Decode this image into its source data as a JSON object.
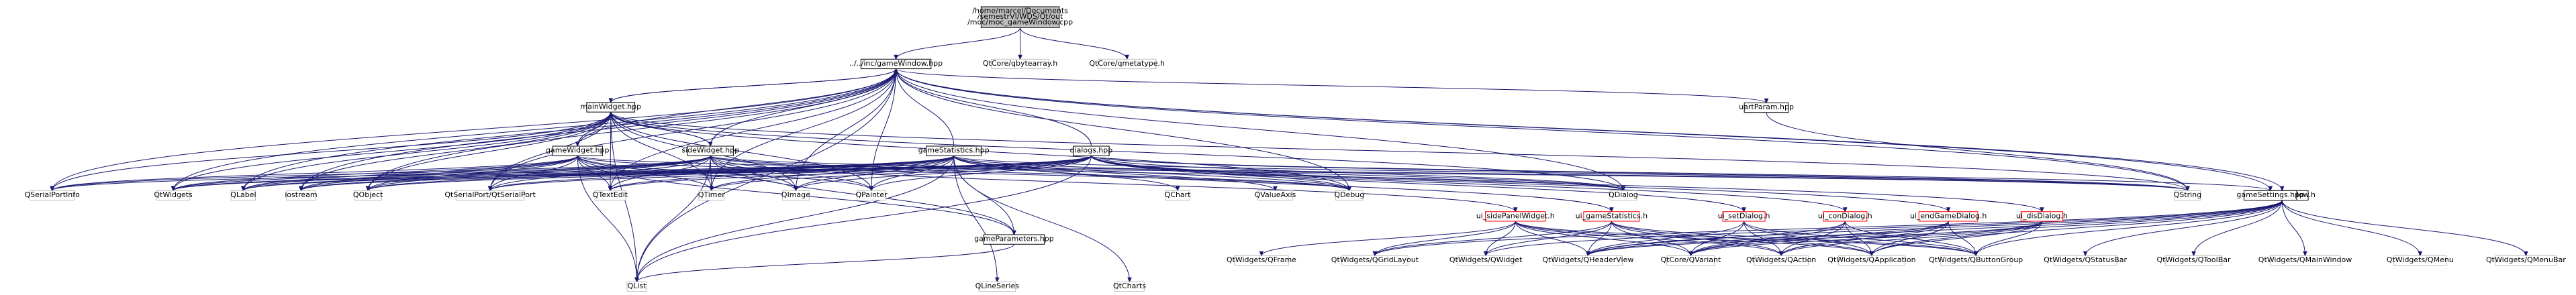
{
  "diagram": {
    "type": "include-dependency-graph",
    "colors": {
      "edge": "#191970",
      "root_fill": "#bfbfbf",
      "node_stroke_default": "#000000",
      "node_stroke_missing": "#bfbfbf",
      "node_stroke_truncated": "#ff0000",
      "node_fill": "#ffffff"
    },
    "nodes": [
      {
        "id": "root",
        "lines": [
          "/home/marcel/Documents",
          "/semestrVI/WDS/Qt/out",
          "/moc/moc_gameWindow.cpp"
        ],
        "kind": "root"
      },
      {
        "id": "gameWindow_hpp",
        "lines": [
          "../../inc/gameWindow.hpp"
        ],
        "kind": "file"
      },
      {
        "id": "qbytearray",
        "lines": [
          "QtCore/qbytearray.h"
        ],
        "kind": "missing"
      },
      {
        "id": "qmetatype",
        "lines": [
          "QtCore/qmetatype.h"
        ],
        "kind": "missing"
      },
      {
        "id": "mainWidget",
        "lines": [
          "mainWidget.hpp"
        ],
        "kind": "file"
      },
      {
        "id": "uartParam",
        "lines": [
          "uartParam.hpp"
        ],
        "kind": "file"
      },
      {
        "id": "gameWidget",
        "lines": [
          "gameWidget.hpp"
        ],
        "kind": "file"
      },
      {
        "id": "sideWidget",
        "lines": [
          "sideWidget.hpp"
        ],
        "kind": "file"
      },
      {
        "id": "gameStatistics_hpp",
        "lines": [
          "gameStatistics.hpp"
        ],
        "kind": "file"
      },
      {
        "id": "dialogs",
        "lines": [
          "dialogs.hpp"
        ],
        "kind": "file"
      },
      {
        "id": "ui_gameWindow",
        "lines": [
          "ui_gameWindow.h"
        ],
        "kind": "file"
      },
      {
        "id": "QSerialPortInfo",
        "lines": [
          "QSerialPortInfo"
        ],
        "kind": "missing"
      },
      {
        "id": "QtWidgets",
        "lines": [
          "QtWidgets"
        ],
        "kind": "missing"
      },
      {
        "id": "QLabel",
        "lines": [
          "QLabel"
        ],
        "kind": "missing"
      },
      {
        "id": "iostream",
        "lines": [
          "iostream"
        ],
        "kind": "missing"
      },
      {
        "id": "QObject",
        "lines": [
          "QObject"
        ],
        "kind": "missing"
      },
      {
        "id": "QtSerialPort",
        "lines": [
          "QtSerialPort/QtSerialPort"
        ],
        "kind": "missing"
      },
      {
        "id": "QTextEdit",
        "lines": [
          "QTextEdit"
        ],
        "kind": "missing"
      },
      {
        "id": "QTimer",
        "lines": [
          "QTimer"
        ],
        "kind": "missing"
      },
      {
        "id": "QImage",
        "lines": [
          "QImage"
        ],
        "kind": "missing"
      },
      {
        "id": "QPainter",
        "lines": [
          "QPainter"
        ],
        "kind": "missing"
      },
      {
        "id": "gameParameters",
        "lines": [
          "gameParameters.hpp"
        ],
        "kind": "file"
      },
      {
        "id": "QChart",
        "lines": [
          "QChart"
        ],
        "kind": "missing"
      },
      {
        "id": "QValueAxis",
        "lines": [
          "QValueAxis"
        ],
        "kind": "missing"
      },
      {
        "id": "QDebug",
        "lines": [
          "QDebug"
        ],
        "kind": "missing"
      },
      {
        "id": "QDialog",
        "lines": [
          "QDialog"
        ],
        "kind": "missing"
      },
      {
        "id": "ui_sidePanelWidget",
        "lines": [
          "ui_sidePanelWidget.h"
        ],
        "kind": "truncated"
      },
      {
        "id": "ui_gameStatistics",
        "lines": [
          "ui_gameStatistics.h"
        ],
        "kind": "truncated"
      },
      {
        "id": "ui_setDialog",
        "lines": [
          "ui_setDialog.h"
        ],
        "kind": "truncated"
      },
      {
        "id": "ui_conDialog",
        "lines": [
          "ui_conDialog.h"
        ],
        "kind": "truncated"
      },
      {
        "id": "ui_endGameDialog",
        "lines": [
          "ui_endGameDialog.h"
        ],
        "kind": "truncated"
      },
      {
        "id": "ui_disDialog",
        "lines": [
          "ui_disDialog.h"
        ],
        "kind": "truncated"
      },
      {
        "id": "QString",
        "lines": [
          "QString"
        ],
        "kind": "missing"
      },
      {
        "id": "gameSettings",
        "lines": [
          "gameSettings.hpp"
        ],
        "kind": "file"
      },
      {
        "id": "QList",
        "lines": [
          "QList"
        ],
        "kind": "missing"
      },
      {
        "id": "QLineSeries",
        "lines": [
          "QLineSeries"
        ],
        "kind": "missing"
      },
      {
        "id": "QtCharts",
        "lines": [
          "QtCharts"
        ],
        "kind": "missing"
      },
      {
        "id": "QFrame",
        "lines": [
          "QtWidgets/QFrame"
        ],
        "kind": "missing"
      },
      {
        "id": "QGridLayout",
        "lines": [
          "QtWidgets/QGridLayout"
        ],
        "kind": "missing"
      },
      {
        "id": "QWidget",
        "lines": [
          "QtWidgets/QWidget"
        ],
        "kind": "missing"
      },
      {
        "id": "QHeaderView",
        "lines": [
          "QtWidgets/QHeaderView"
        ],
        "kind": "missing"
      },
      {
        "id": "QVariant",
        "lines": [
          "QtCore/QVariant"
        ],
        "kind": "missing"
      },
      {
        "id": "QAction",
        "lines": [
          "QtWidgets/QAction"
        ],
        "kind": "missing"
      },
      {
        "id": "QApplication",
        "lines": [
          "QtWidgets/QApplication"
        ],
        "kind": "missing"
      },
      {
        "id": "QButtonGroup",
        "lines": [
          "QtWidgets/QButtonGroup"
        ],
        "kind": "missing"
      },
      {
        "id": "QStatusBar",
        "lines": [
          "QtWidgets/QStatusBar"
        ],
        "kind": "missing"
      },
      {
        "id": "QToolBar",
        "lines": [
          "QtWidgets/QToolBar"
        ],
        "kind": "missing"
      },
      {
        "id": "QMainWindow",
        "lines": [
          "QtWidgets/QMainWindow"
        ],
        "kind": "missing"
      },
      {
        "id": "QMenu",
        "lines": [
          "QtWidgets/QMenu"
        ],
        "kind": "missing"
      },
      {
        "id": "QMenuBar",
        "lines": [
          "QtWidgets/QMenuBar"
        ],
        "kind": "missing"
      }
    ],
    "edges": [
      [
        "root",
        "gameWindow_hpp"
      ],
      [
        "root",
        "qbytearray"
      ],
      [
        "root",
        "qmetatype"
      ],
      [
        "gameWindow_hpp",
        "mainWidget"
      ],
      [
        "gameWindow_hpp",
        "uartParam"
      ],
      [
        "gameWindow_hpp",
        "gameSettings"
      ],
      [
        "gameWindow_hpp",
        "ui_gameWindow"
      ],
      [
        "gameWindow_hpp",
        "QString"
      ],
      [
        "gameWindow_hpp",
        "QDialog"
      ],
      [
        "gameWindow_hpp",
        "QDebug"
      ],
      [
        "gameWindow_hpp",
        "QPainter"
      ],
      [
        "gameWindow_hpp",
        "QImage"
      ],
      [
        "gameWindow_hpp",
        "QTimer"
      ],
      [
        "gameWindow_hpp",
        "QTextEdit"
      ],
      [
        "gameWindow_hpp",
        "QtSerialPort"
      ],
      [
        "gameWindow_hpp",
        "QObject"
      ],
      [
        "gameWindow_hpp",
        "iostream"
      ],
      [
        "gameWindow_hpp",
        "QLabel"
      ],
      [
        "gameWindow_hpp",
        "QtWidgets"
      ],
      [
        "gameWindow_hpp",
        "QSerialPortInfo"
      ],
      [
        "gameWindow_hpp",
        "QList"
      ],
      [
        "mainWidget",
        "gameWidget"
      ],
      [
        "mainWidget",
        "sideWidget"
      ],
      [
        "mainWidget",
        "gameWindow_hpp"
      ],
      [
        "mainWidget",
        "QSerialPortInfo"
      ],
      [
        "mainWidget",
        "QtWidgets"
      ],
      [
        "mainWidget",
        "QLabel"
      ],
      [
        "mainWidget",
        "iostream"
      ],
      [
        "mainWidget",
        "QObject"
      ],
      [
        "mainWidget",
        "QtSerialPort"
      ],
      [
        "mainWidget",
        "QTextEdit"
      ],
      [
        "mainWidget",
        "QTimer"
      ],
      [
        "mainWidget",
        "QImage"
      ],
      [
        "mainWidget",
        "QPainter"
      ],
      [
        "mainWidget",
        "QDebug"
      ],
      [
        "mainWidget",
        "QDialog"
      ],
      [
        "mainWidget",
        "QString"
      ],
      [
        "mainWidget",
        "QList"
      ],
      [
        "gameWidget",
        "mainWidget"
      ],
      [
        "gameWidget",
        "gameWindow_hpp"
      ],
      [
        "gameWidget",
        "QSerialPortInfo"
      ],
      [
        "gameWidget",
        "QtWidgets"
      ],
      [
        "gameWidget",
        "QLabel"
      ],
      [
        "gameWidget",
        "iostream"
      ],
      [
        "gameWidget",
        "QObject"
      ],
      [
        "gameWidget",
        "QtSerialPort"
      ],
      [
        "gameWidget",
        "QTextEdit"
      ],
      [
        "gameWidget",
        "QTimer"
      ],
      [
        "gameWidget",
        "QImage"
      ],
      [
        "gameWidget",
        "QPainter"
      ],
      [
        "gameWidget",
        "gameParameters"
      ],
      [
        "gameWidget",
        "QDebug"
      ],
      [
        "gameWidget",
        "QString"
      ],
      [
        "gameWidget",
        "QList"
      ],
      [
        "sideWidget",
        "mainWidget"
      ],
      [
        "sideWidget",
        "gameWindow_hpp"
      ],
      [
        "sideWidget",
        "QSerialPortInfo"
      ],
      [
        "sideWidget",
        "QtWidgets"
      ],
      [
        "sideWidget",
        "QLabel"
      ],
      [
        "sideWidget",
        "iostream"
      ],
      [
        "sideWidget",
        "QObject"
      ],
      [
        "sideWidget",
        "QtSerialPort"
      ],
      [
        "sideWidget",
        "QTextEdit"
      ],
      [
        "sideWidget",
        "QTimer"
      ],
      [
        "sideWidget",
        "QImage"
      ],
      [
        "sideWidget",
        "QPainter"
      ],
      [
        "sideWidget",
        "gameParameters"
      ],
      [
        "sideWidget",
        "QDebug"
      ],
      [
        "sideWidget",
        "QDialog"
      ],
      [
        "sideWidget",
        "ui_sidePanelWidget"
      ],
      [
        "sideWidget",
        "QString"
      ],
      [
        "sideWidget",
        "QList"
      ],
      [
        "gameStatistics_hpp",
        "gameWindow_hpp"
      ],
      [
        "gameStatistics_hpp",
        "QSerialPortInfo"
      ],
      [
        "gameStatistics_hpp",
        "QtWidgets"
      ],
      [
        "gameStatistics_hpp",
        "QLabel"
      ],
      [
        "gameStatistics_hpp",
        "iostream"
      ],
      [
        "gameStatistics_hpp",
        "QObject"
      ],
      [
        "gameStatistics_hpp",
        "QtSerialPort"
      ],
      [
        "gameStatistics_hpp",
        "QTextEdit"
      ],
      [
        "gameStatistics_hpp",
        "QTimer"
      ],
      [
        "gameStatistics_hpp",
        "QImage"
      ],
      [
        "gameStatistics_hpp",
        "QPainter"
      ],
      [
        "gameStatistics_hpp",
        "gameParameters"
      ],
      [
        "gameStatistics_hpp",
        "QChart"
      ],
      [
        "gameStatistics_hpp",
        "QValueAxis"
      ],
      [
        "gameStatistics_hpp",
        "QLineSeries"
      ],
      [
        "gameStatistics_hpp",
        "QtCharts"
      ],
      [
        "gameStatistics_hpp",
        "QDebug"
      ],
      [
        "gameStatistics_hpp",
        "QDialog"
      ],
      [
        "gameStatistics_hpp",
        "ui_gameStatistics"
      ],
      [
        "gameStatistics_hpp",
        "QString"
      ],
      [
        "gameStatistics_hpp",
        "QList"
      ],
      [
        "dialogs",
        "gameWindow_hpp"
      ],
      [
        "dialogs",
        "QtWidgets"
      ],
      [
        "dialogs",
        "QLabel"
      ],
      [
        "dialogs",
        "iostream"
      ],
      [
        "dialogs",
        "QObject"
      ],
      [
        "dialogs",
        "QtSerialPort"
      ],
      [
        "dialogs",
        "QTextEdit"
      ],
      [
        "dialogs",
        "QTimer"
      ],
      [
        "dialogs",
        "QImage"
      ],
      [
        "dialogs",
        "QPainter"
      ],
      [
        "dialogs",
        "QDebug"
      ],
      [
        "dialogs",
        "QDialog"
      ],
      [
        "dialogs",
        "ui_setDialog"
      ],
      [
        "dialogs",
        "ui_conDialog"
      ],
      [
        "dialogs",
        "ui_endGameDialog"
      ],
      [
        "dialogs",
        "ui_disDialog"
      ],
      [
        "dialogs",
        "QString"
      ],
      [
        "dialogs",
        "gameSettings"
      ],
      [
        "dialogs",
        "QList"
      ],
      [
        "uartParam",
        "QString"
      ],
      [
        "gameParameters",
        "QList"
      ],
      [
        "ui_gameWindow",
        "QVariant"
      ],
      [
        "ui_gameWindow",
        "QAction"
      ],
      [
        "ui_gameWindow",
        "QApplication"
      ],
      [
        "ui_gameWindow",
        "QButtonGroup"
      ],
      [
        "ui_gameWindow",
        "QHeaderView"
      ],
      [
        "ui_gameWindow",
        "QStatusBar"
      ],
      [
        "ui_gameWindow",
        "QToolBar"
      ],
      [
        "ui_gameWindow",
        "QMainWindow"
      ],
      [
        "ui_gameWindow",
        "QMenu"
      ],
      [
        "ui_gameWindow",
        "QMenuBar"
      ],
      [
        "ui_gameWindow",
        "QWidget"
      ],
      [
        "ui_gameWindow",
        "QGridLayout"
      ],
      [
        "ui_sidePanelWidget",
        "QFrame"
      ],
      [
        "ui_sidePanelWidget",
        "QGridLayout"
      ],
      [
        "ui_sidePanelWidget",
        "QWidget"
      ],
      [
        "ui_sidePanelWidget",
        "QHeaderView"
      ],
      [
        "ui_sidePanelWidget",
        "QVariant"
      ],
      [
        "ui_sidePanelWidget",
        "QAction"
      ],
      [
        "ui_sidePanelWidget",
        "QApplication"
      ],
      [
        "ui_sidePanelWidget",
        "QButtonGroup"
      ],
      [
        "ui_gameStatistics",
        "QGridLayout"
      ],
      [
        "ui_gameStatistics",
        "QWidget"
      ],
      [
        "ui_gameStatistics",
        "QHeaderView"
      ],
      [
        "ui_gameStatistics",
        "QVariant"
      ],
      [
        "ui_gameStatistics",
        "QAction"
      ],
      [
        "ui_gameStatistics",
        "QApplication"
      ],
      [
        "ui_gameStatistics",
        "QButtonGroup"
      ],
      [
        "ui_setDialog",
        "QHeaderView"
      ],
      [
        "ui_setDialog",
        "QVariant"
      ],
      [
        "ui_setDialog",
        "QAction"
      ],
      [
        "ui_setDialog",
        "QApplication"
      ],
      [
        "ui_setDialog",
        "QButtonGroup"
      ],
      [
        "ui_conDialog",
        "QHeaderView"
      ],
      [
        "ui_conDialog",
        "QVariant"
      ],
      [
        "ui_conDialog",
        "QAction"
      ],
      [
        "ui_conDialog",
        "QApplication"
      ],
      [
        "ui_conDialog",
        "QButtonGroup"
      ],
      [
        "ui_endGameDialog",
        "QHeaderView"
      ],
      [
        "ui_endGameDialog",
        "QVariant"
      ],
      [
        "ui_endGameDialog",
        "QAction"
      ],
      [
        "ui_endGameDialog",
        "QApplication"
      ],
      [
        "ui_endGameDialog",
        "QButtonGroup"
      ],
      [
        "ui_disDialog",
        "QHeaderView"
      ],
      [
        "ui_disDialog",
        "QVariant"
      ],
      [
        "ui_disDialog",
        "QAction"
      ],
      [
        "ui_disDialog",
        "QApplication"
      ],
      [
        "ui_disDialog",
        "QButtonGroup"
      ]
    ]
  }
}
